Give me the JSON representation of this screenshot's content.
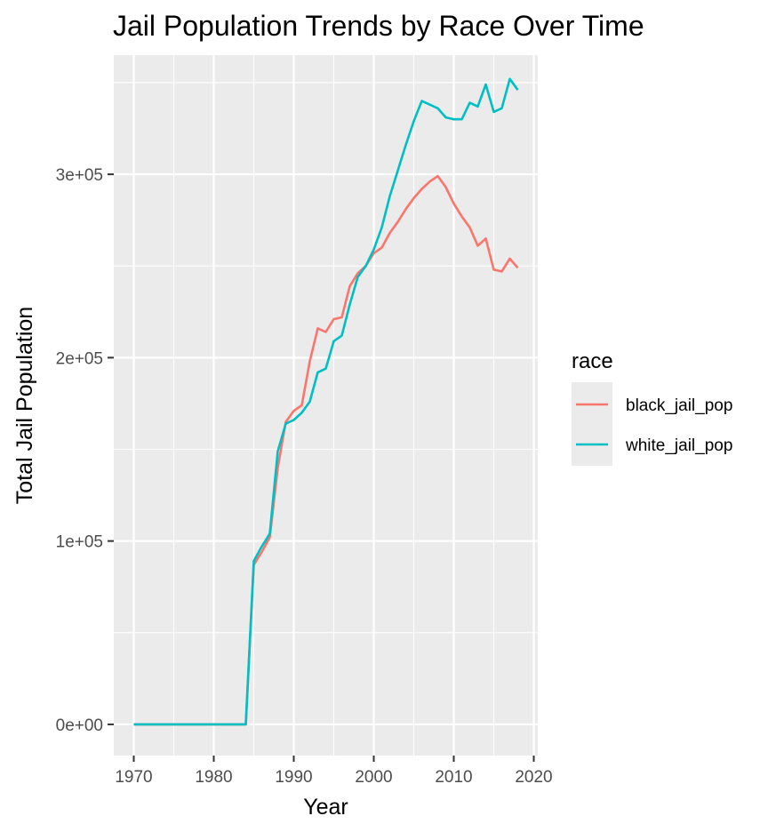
{
  "chart_data": {
    "type": "line",
    "title": "Jail Population Trends by Race Over Time",
    "xlabel": "Year",
    "ylabel": "Total Jail Population",
    "xlim": [
      1967.5,
      2020.5
    ],
    "ylim": [
      -17000,
      365000
    ],
    "x_ticks": [
      1970,
      1980,
      1990,
      2000,
      2010,
      2020
    ],
    "x_tick_labels": [
      "1970",
      "1980",
      "1990",
      "2000",
      "2010",
      "2020"
    ],
    "y_ticks": [
      0,
      100000,
      200000,
      300000
    ],
    "y_tick_labels": [
      "0e+00",
      "1e+05",
      "2e+05",
      "3e+05"
    ],
    "grid": true,
    "legend": {
      "title": "race",
      "position": "right"
    },
    "series": [
      {
        "name": "black_jail_pop",
        "color": "#F8766D",
        "x": [
          1970,
          1971,
          1972,
          1973,
          1974,
          1975,
          1976,
          1977,
          1978,
          1979,
          1980,
          1981,
          1982,
          1983,
          1984,
          1985,
          1986,
          1987,
          1988,
          1989,
          1990,
          1991,
          1992,
          1993,
          1994,
          1995,
          1996,
          1997,
          1998,
          1999,
          2000,
          2001,
          2002,
          2003,
          2004,
          2005,
          2006,
          2007,
          2008,
          2009,
          2010,
          2011,
          2012,
          2013,
          2014,
          2015,
          2016,
          2017,
          2018
        ],
        "values": [
          0,
          0,
          0,
          0,
          0,
          0,
          0,
          0,
          0,
          0,
          0,
          0,
          0,
          0,
          0,
          87000,
          94000,
          102000,
          140000,
          165000,
          171000,
          174000,
          198000,
          216000,
          214000,
          221000,
          222000,
          239000,
          246000,
          250000,
          257000,
          260000,
          268000,
          274000,
          281000,
          287000,
          292000,
          296000,
          299000,
          293000,
          284000,
          277000,
          271000,
          261000,
          265000,
          248000,
          247000,
          254000,
          249000
        ]
      },
      {
        "name": "white_jail_pop",
        "color": "#00BFC4",
        "x": [
          1970,
          1971,
          1972,
          1973,
          1974,
          1975,
          1976,
          1977,
          1978,
          1979,
          1980,
          1981,
          1982,
          1983,
          1984,
          1985,
          1986,
          1987,
          1988,
          1989,
          1990,
          1991,
          1992,
          1993,
          1994,
          1995,
          1996,
          1997,
          1998,
          1999,
          2000,
          2001,
          2002,
          2003,
          2004,
          2005,
          2006,
          2007,
          2008,
          2009,
          2010,
          2011,
          2012,
          2013,
          2014,
          2015,
          2016,
          2017,
          2018
        ],
        "values": [
          0,
          0,
          0,
          0,
          0,
          0,
          0,
          0,
          0,
          0,
          0,
          0,
          0,
          0,
          0,
          89000,
          97000,
          104000,
          149000,
          164000,
          166000,
          170000,
          176000,
          192000,
          194000,
          209000,
          212000,
          229000,
          244000,
          250000,
          259000,
          271000,
          288000,
          302000,
          316000,
          329000,
          340000,
          338000,
          336000,
          331000,
          330000,
          330000,
          339000,
          337000,
          349000,
          334000,
          336000,
          352000,
          346000
        ]
      }
    ]
  }
}
